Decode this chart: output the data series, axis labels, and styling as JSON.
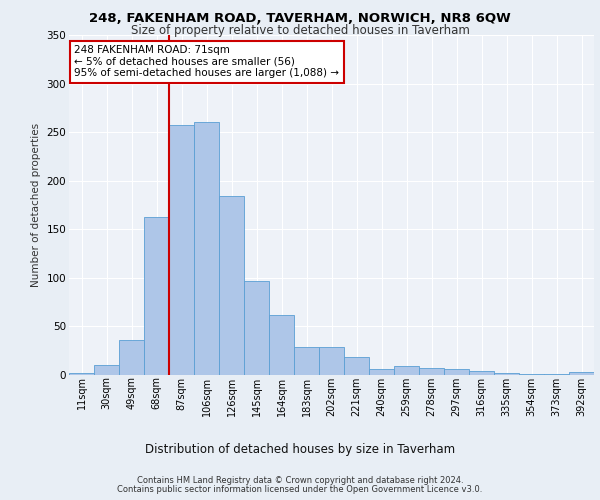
{
  "title1": "248, FAKENHAM ROAD, TAVERHAM, NORWICH, NR8 6QW",
  "title2": "Size of property relative to detached houses in Taverham",
  "xlabel": "Distribution of detached houses by size in Taverham",
  "ylabel": "Number of detached properties",
  "categories": [
    "11sqm",
    "30sqm",
    "49sqm",
    "68sqm",
    "87sqm",
    "106sqm",
    "126sqm",
    "145sqm",
    "164sqm",
    "183sqm",
    "202sqm",
    "221sqm",
    "240sqm",
    "259sqm",
    "278sqm",
    "297sqm",
    "316sqm",
    "335sqm",
    "354sqm",
    "373sqm",
    "392sqm"
  ],
  "values": [
    2,
    10,
    36,
    163,
    257,
    260,
    184,
    97,
    62,
    29,
    29,
    19,
    6,
    9,
    7,
    6,
    4,
    2,
    1,
    1,
    3
  ],
  "bar_color": "#aec6e8",
  "bar_edge_color": "#5a9fd4",
  "vline_x": 3.5,
  "vline_color": "#cc0000",
  "annotation_text": "248 FAKENHAM ROAD: 71sqm\n← 5% of detached houses are smaller (56)\n95% of semi-detached houses are larger (1,088) →",
  "annotation_box_color": "#ffffff",
  "annotation_box_edge_color": "#cc0000",
  "ylim": [
    0,
    350
  ],
  "yticks": [
    0,
    50,
    100,
    150,
    200,
    250,
    300,
    350
  ],
  "footer1": "Contains HM Land Registry data © Crown copyright and database right 2024.",
  "footer2": "Contains public sector information licensed under the Open Government Licence v3.0.",
  "bg_color": "#e8eef5",
  "plot_bg_color": "#eef2f8",
  "title1_fontsize": 9.5,
  "title2_fontsize": 8.5,
  "ylabel_fontsize": 7.5,
  "xlabel_fontsize": 8.5,
  "tick_fontsize": 7,
  "footer_fontsize": 6,
  "ann_fontsize": 7.5
}
